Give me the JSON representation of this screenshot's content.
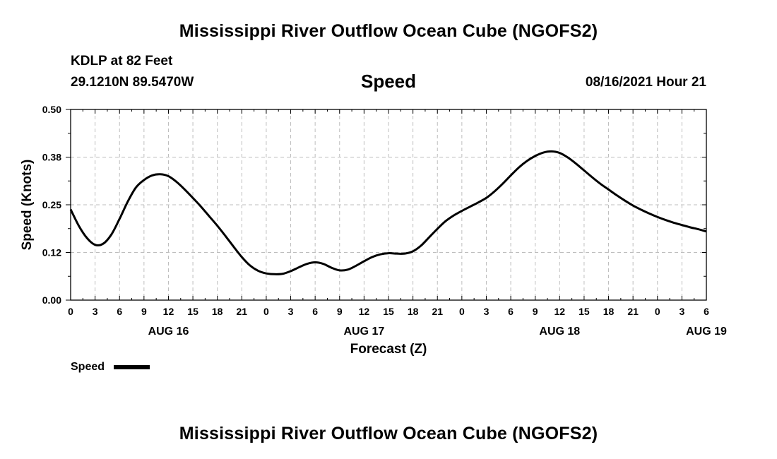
{
  "header": {
    "title": "Mississippi River Outflow Ocean Cube (NGOFS2)",
    "station": "KDLP at 82 Feet",
    "coordinates": "29.1210N  89.5470W",
    "variable": "Speed",
    "datetime": "08/16/2021 Hour 21"
  },
  "footer": {
    "title": "Mississippi River Outflow Ocean Cube (NGOFS2)"
  },
  "chart_data": {
    "type": "line",
    "title": "Speed",
    "xlabel": "Forecast (Z)",
    "ylabel": "Speed (Knots)",
    "xlim": [
      0,
      78
    ],
    "ylim": [
      0,
      0.5
    ],
    "yticks": [
      "0.00",
      "0.12",
      "0.25",
      "0.38",
      "0.50"
    ],
    "ytick_values": [
      0,
      0.125,
      0.25,
      0.375,
      0.5
    ],
    "xtick_labels": [
      "0",
      "3",
      "6",
      "9",
      "12",
      "15",
      "18",
      "21",
      "0",
      "3",
      "6",
      "9",
      "12",
      "15",
      "18",
      "21",
      "0",
      "3",
      "6",
      "9",
      "12",
      "15",
      "18",
      "21",
      "0",
      "3",
      "6"
    ],
    "day_labels": [
      {
        "label": "AUG 16",
        "hour": 12
      },
      {
        "label": "AUG 17",
        "hour": 36
      },
      {
        "label": "AUG 18",
        "hour": 60
      },
      {
        "label": "AUG 19",
        "hour": 78
      }
    ],
    "grid": true,
    "series": [
      {
        "name": "Speed",
        "color": "#000000",
        "x": [
          0,
          1,
          2,
          3,
          4,
          5,
          6,
          7,
          8,
          9,
          10,
          11,
          12,
          13,
          14,
          15,
          16,
          17,
          18,
          19,
          20,
          21,
          22,
          23,
          24,
          25,
          26,
          27,
          28,
          29,
          30,
          31,
          32,
          33,
          34,
          35,
          36,
          37,
          38,
          39,
          40,
          41,
          42,
          43,
          44,
          45,
          46,
          47,
          48,
          49,
          50,
          51,
          52,
          53,
          54,
          55,
          56,
          57,
          58,
          59,
          60,
          61,
          62,
          63,
          64,
          65,
          66,
          67,
          68,
          69,
          70,
          71,
          72,
          73,
          74,
          75,
          76,
          77,
          78
        ],
        "values": [
          0.238,
          0.195,
          0.163,
          0.145,
          0.148,
          0.172,
          0.213,
          0.258,
          0.295,
          0.315,
          0.327,
          0.33,
          0.325,
          0.31,
          0.29,
          0.268,
          0.245,
          0.22,
          0.195,
          0.168,
          0.14,
          0.113,
          0.091,
          0.077,
          0.07,
          0.068,
          0.069,
          0.076,
          0.086,
          0.095,
          0.099,
          0.095,
          0.085,
          0.078,
          0.08,
          0.09,
          0.102,
          0.113,
          0.12,
          0.123,
          0.122,
          0.122,
          0.128,
          0.143,
          0.165,
          0.187,
          0.207,
          0.222,
          0.234,
          0.245,
          0.256,
          0.268,
          0.285,
          0.305,
          0.327,
          0.348,
          0.365,
          0.378,
          0.387,
          0.39,
          0.386,
          0.374,
          0.358,
          0.34,
          0.322,
          0.305,
          0.29,
          0.275,
          0.261,
          0.248,
          0.237,
          0.227,
          0.218,
          0.21,
          0.203,
          0.197,
          0.191,
          0.186,
          0.18
        ]
      }
    ]
  },
  "legend": {
    "label": "Speed"
  }
}
